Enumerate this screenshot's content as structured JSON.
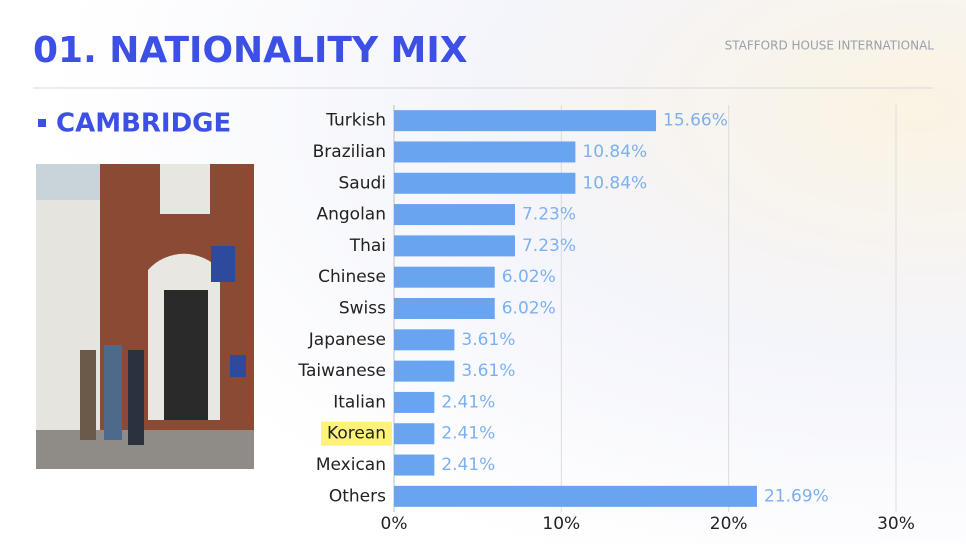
{
  "header": {
    "title": "01. NATIONALITY MIX",
    "brand": "STAFFORD HOUSE INTERNATIONAL",
    "subtitle": "CAMBRIDGE"
  },
  "chart_data": {
    "type": "hbar",
    "categories": [
      "Turkish",
      "Brazilian",
      "Saudi",
      "Angolan",
      "Thai",
      "Chinese",
      "Swiss",
      "Japanese",
      "Taiwanese",
      "Italian",
      "Korean",
      "Mexican",
      "Others"
    ],
    "values": [
      15.66,
      10.84,
      10.84,
      7.23,
      7.23,
      6.02,
      6.02,
      3.61,
      3.61,
      2.41,
      2.41,
      2.41,
      21.69
    ],
    "value_labels": [
      "15.66%",
      "10.84%",
      "10.84%",
      "7.23%",
      "7.23%",
      "6.02%",
      "6.02%",
      "3.61%",
      "3.61%",
      "2.41%",
      "2.41%",
      "2.41%",
      "21.69%"
    ],
    "color": "#68a4f0",
    "xlim": [
      0,
      30
    ],
    "xticks": [
      {
        "value": 0,
        "label": "0%"
      },
      {
        "value": 10,
        "label": "10%"
      },
      {
        "value": 20,
        "label": "20%"
      },
      {
        "value": 30,
        "label": "30%"
      }
    ],
    "grid": true,
    "highlighted_category": 10,
    "highlight_color": "#fff27a"
  }
}
